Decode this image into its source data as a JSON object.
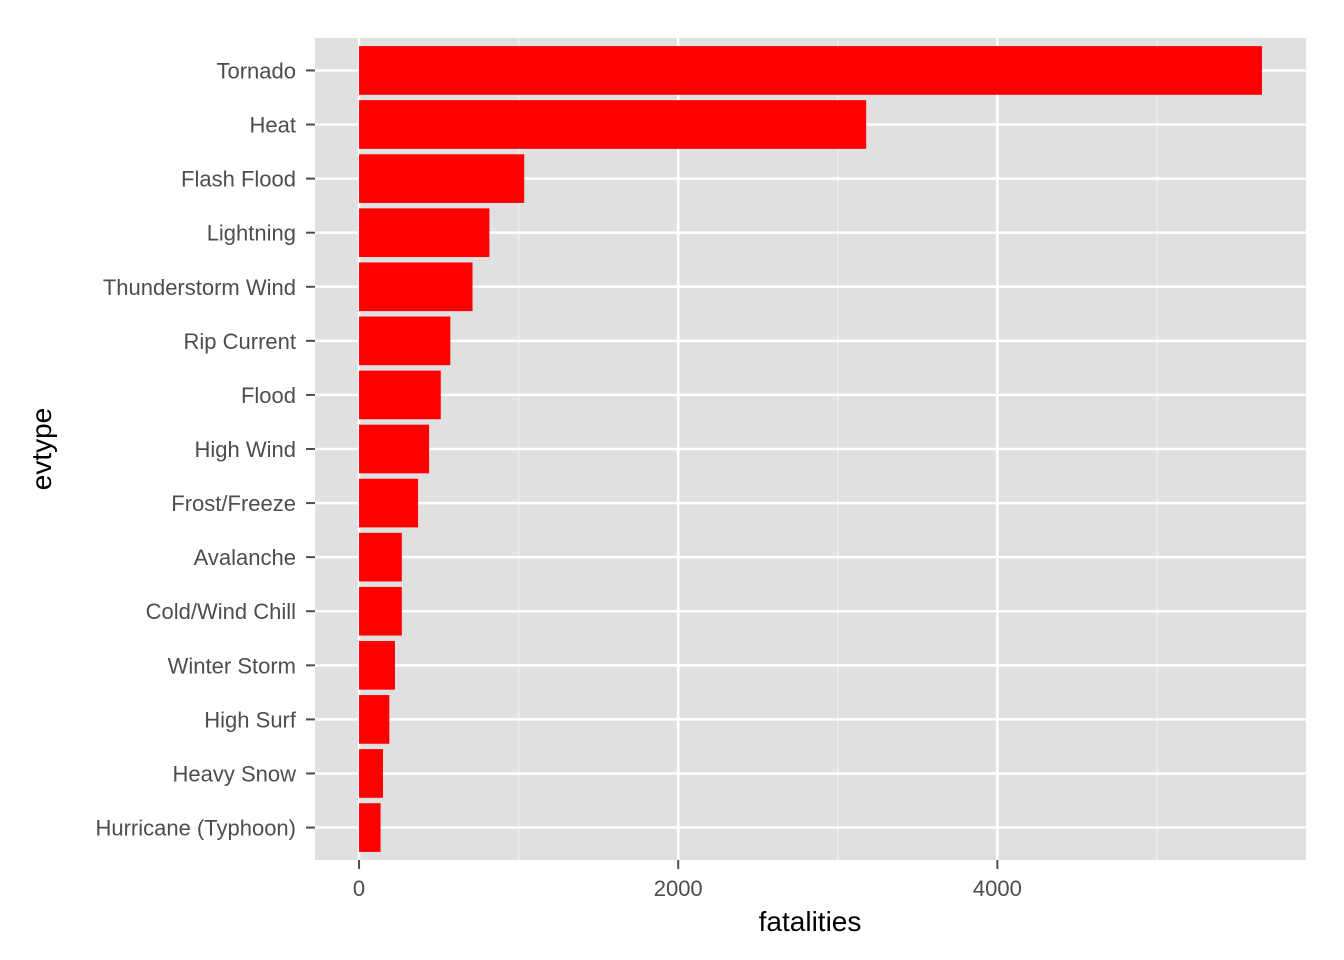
{
  "chart_data": {
    "type": "bar",
    "orientation": "horizontal",
    "categories": [
      "Tornado",
      "Heat",
      "Flash Flood",
      "Lightning",
      "Thunderstorm Wind",
      "Rip Current",
      "Flood",
      "High Wind",
      "Frost/Freeze",
      "Avalanche",
      "Cold/Wind Chill",
      "Winter Storm",
      "High Surf",
      "Heavy Snow",
      "Hurricane (Typhoon)"
    ],
    "values": [
      5658,
      3178,
      1035,
      817,
      711,
      572,
      512,
      439,
      370,
      268,
      268,
      225,
      190,
      150,
      135
    ],
    "xlabel": "fatalities",
    "ylabel": "evtype",
    "xticks": [
      0,
      2000,
      4000
    ],
    "xlim": [
      -276,
      5934
    ],
    "bar_color": "#ff0000",
    "panel_background": "#e0e0e0",
    "grid": true
  }
}
